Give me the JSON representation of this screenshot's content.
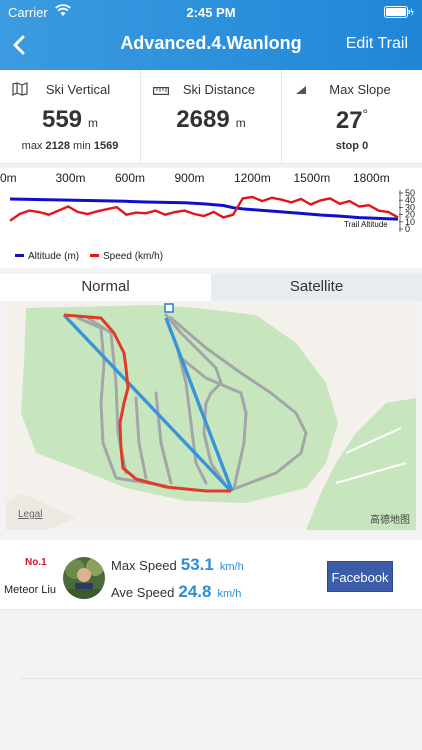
{
  "status": {
    "carrier": "Carrier",
    "time": "2:45 PM"
  },
  "header": {
    "title": "Advanced.4.Wanlong",
    "edit_label": "Edit Trail"
  },
  "stats": {
    "vertical": {
      "label": "Ski Vertical",
      "value": "559",
      "unit": "m",
      "max_label": "max",
      "max_value": "2128",
      "min_label": "min",
      "min_value": "1569"
    },
    "distance": {
      "label": "Ski Distance",
      "value": "2689",
      "unit": "m"
    },
    "slope": {
      "label": "Max Slope",
      "value": "27",
      "unit": "°",
      "stop_label": "stop",
      "stop_value": "0"
    }
  },
  "chart_data": {
    "type": "line",
    "x_ticks": [
      "0m",
      "300m",
      "600m",
      "900m",
      "1200m",
      "1500m",
      "1800m"
    ],
    "y_ticks": [
      "50",
      "40",
      "30",
      "20",
      "10",
      "0"
    ],
    "annotation": "Trail Altitude",
    "legend": [
      {
        "name": "Altitude (m)",
        "color": "#1010cc"
      },
      {
        "name": "Speed (km/h)",
        "color": "#e0161c"
      }
    ],
    "series": [
      {
        "name": "Altitude (m)",
        "x": [
          0,
          100,
          200,
          300,
          400,
          500,
          600,
          700,
          800,
          900,
          1000,
          1100,
          1150,
          1200,
          1300,
          1400,
          1500,
          1600,
          1700,
          1800,
          1900,
          2000
        ],
        "values": [
          100,
          99,
          98,
          97,
          96,
          95,
          94,
          92,
          91,
          90,
          87,
          83,
          77,
          74,
          70,
          66,
          62,
          58,
          55,
          51,
          49,
          47
        ]
      },
      {
        "name": "Speed (km/h)",
        "x": [
          0,
          50,
          100,
          150,
          200,
          250,
          300,
          350,
          400,
          450,
          500,
          550,
          600,
          650,
          700,
          750,
          800,
          850,
          900,
          950,
          1000,
          1050,
          1100,
          1150,
          1200,
          1250,
          1300,
          1350,
          1400,
          1450,
          1500,
          1550,
          1600,
          1650,
          1700,
          1750,
          1800,
          1850,
          1900,
          1950,
          2000
        ],
        "values": [
          15,
          25,
          30,
          28,
          24,
          30,
          36,
          28,
          25,
          29,
          32,
          35,
          24,
          27,
          26,
          30,
          24,
          28,
          30,
          25,
          22,
          28,
          20,
          24,
          48,
          50,
          44,
          49,
          46,
          42,
          47,
          39,
          45,
          48,
          40,
          44,
          36,
          38,
          30,
          28,
          20
        ]
      }
    ]
  },
  "tabs": [
    {
      "label": "Normal",
      "active": true
    },
    {
      "label": "Satellite",
      "active": false
    }
  ],
  "map": {
    "legal": "Legal",
    "provider": "高德地图"
  },
  "rider": {
    "rank": "No.1",
    "name": "Meteor Liu",
    "max_speed_label": "Max Speed",
    "max_speed": "53.1",
    "max_unit": "km/h",
    "ave_speed_label": "Ave Speed",
    "ave_speed": "24.8",
    "ave_unit": "km/h",
    "share_label": "Facebook"
  }
}
